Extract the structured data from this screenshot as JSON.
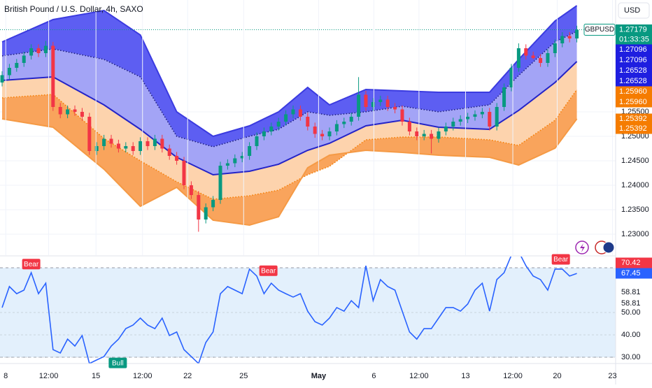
{
  "chart_data": [
    {
      "type": "candlestick",
      "title": "British Pound / U.S. Dollar, 4h, SAXO",
      "symbol": "GBPUSD",
      "up_color": "#089981",
      "down_color": "#f23645",
      "open": [
        1.261,
        1.2625,
        1.264,
        1.265,
        1.2665,
        1.268,
        1.267,
        1.2685,
        1.256,
        1.2545,
        1.2555,
        1.255,
        1.254,
        1.247,
        1.248,
        1.2495,
        1.2485,
        1.2475,
        1.248,
        1.247,
        1.249,
        1.248,
        1.2495,
        1.2475,
        1.246,
        1.245,
        1.24,
        1.238,
        1.233,
        1.2355,
        1.237,
        1.244,
        1.2445,
        1.2455,
        1.246,
        1.248,
        1.25,
        1.251,
        1.252,
        1.253,
        1.2545,
        1.2555,
        1.254,
        1.252,
        1.2505,
        1.25,
        1.251,
        1.2525,
        1.253,
        1.254,
        1.2585,
        1.256,
        1.257,
        1.2575,
        1.256,
        1.2555,
        1.253,
        1.251,
        1.25,
        1.2505,
        1.2495,
        1.251,
        1.252,
        1.253,
        1.2535,
        1.254,
        1.2545,
        1.255,
        1.252,
        1.256,
        1.26,
        1.264,
        1.268,
        1.2665,
        1.266,
        1.265,
        1.267,
        1.269,
        1.2705,
        1.27
      ],
      "high": [
        1.2633,
        1.2648,
        1.2658,
        1.2673,
        1.2688,
        1.2688,
        1.2695,
        1.2693,
        1.2568,
        1.2563,
        1.2563,
        1.2558,
        1.2548,
        1.2488,
        1.2503,
        1.2503,
        1.2493,
        1.2488,
        1.2488,
        1.2498,
        1.2498,
        1.2503,
        1.2503,
        1.2483,
        1.2468,
        1.2458,
        1.2408,
        1.2388,
        1.2363,
        1.2378,
        1.2448,
        1.2453,
        1.2463,
        1.2468,
        1.2488,
        1.2508,
        1.2518,
        1.2528,
        1.2538,
        1.2553,
        1.2563,
        1.2563,
        1.2548,
        1.2528,
        1.2513,
        1.2518,
        1.2533,
        1.2538,
        1.2548,
        1.2621,
        1.2593,
        1.2578,
        1.2583,
        1.2583,
        1.2568,
        1.2563,
        1.2538,
        1.2518,
        1.2513,
        1.2513,
        1.2518,
        1.2528,
        1.2538,
        1.2543,
        1.2548,
        1.2553,
        1.2558,
        1.2558,
        1.2568,
        1.2608,
        1.2648,
        1.269,
        1.2688,
        1.2673,
        1.2668,
        1.2678,
        1.2698,
        1.2713,
        1.2713,
        1.2726
      ],
      "low": [
        1.2602,
        1.2617,
        1.2632,
        1.2642,
        1.2657,
        1.2662,
        1.2662,
        1.2552,
        1.2537,
        1.2537,
        1.2542,
        1.2532,
        1.2462,
        1.2462,
        1.2472,
        1.2477,
        1.2467,
        1.2467,
        1.2462,
        1.2462,
        1.2472,
        1.2472,
        1.2467,
        1.2452,
        1.2442,
        1.2392,
        1.2372,
        1.2305,
        1.2322,
        1.2347,
        1.2362,
        1.2432,
        1.2437,
        1.2447,
        1.2452,
        1.2472,
        1.2492,
        1.2502,
        1.2512,
        1.2522,
        1.2537,
        1.2532,
        1.2512,
        1.2497,
        1.2492,
        1.2492,
        1.2502,
        1.2517,
        1.2522,
        1.2532,
        1.2552,
        1.2552,
        1.2562,
        1.2552,
        1.2547,
        1.2522,
        1.2502,
        1.2492,
        1.2492,
        1.2465,
        1.2487,
        1.2502,
        1.2512,
        1.2522,
        1.2527,
        1.2532,
        1.2537,
        1.2512,
        1.2512,
        1.2552,
        1.2592,
        1.2632,
        1.2657,
        1.2657,
        1.2642,
        1.2642,
        1.2662,
        1.2682,
        1.2692,
        1.2692
      ],
      "close": [
        1.2625,
        1.264,
        1.265,
        1.2665,
        1.268,
        1.267,
        1.2685,
        1.256,
        1.2545,
        1.2555,
        1.255,
        1.254,
        1.247,
        1.248,
        1.2495,
        1.2485,
        1.2475,
        1.248,
        1.247,
        1.249,
        1.248,
        1.2495,
        1.2475,
        1.246,
        1.245,
        1.24,
        1.238,
        1.233,
        1.2355,
        1.237,
        1.244,
        1.2445,
        1.2455,
        1.246,
        1.248,
        1.25,
        1.251,
        1.252,
        1.253,
        1.2545,
        1.2555,
        1.254,
        1.252,
        1.2505,
        1.25,
        1.251,
        1.2525,
        1.253,
        1.254,
        1.2585,
        1.256,
        1.257,
        1.2575,
        1.256,
        1.2555,
        1.253,
        1.251,
        1.25,
        1.2505,
        1.2495,
        1.251,
        1.252,
        1.253,
        1.2535,
        1.254,
        1.2545,
        1.255,
        1.252,
        1.256,
        1.26,
        1.264,
        1.268,
        1.2665,
        1.266,
        1.265,
        1.267,
        1.269,
        1.2705,
        1.27,
        1.27179
      ],
      "bands": [
        {
          "color": "#3b3be0",
          "fill": "#5d5ef2",
          "dash": false,
          "x": [
            0,
            7,
            14,
            19,
            24,
            29,
            34,
            38,
            42,
            45,
            50,
            55,
            60,
            67,
            71,
            76,
            79
          ],
          "values": [
            1.26929,
            1.27386,
            1.27571,
            1.27071,
            1.255,
            1.25,
            1.25214,
            1.255,
            1.26,
            1.25643,
            1.25957,
            1.25929,
            1.259,
            1.259,
            1.26571,
            1.27357,
            1.27671
          ]
        },
        {
          "color": "#1a1a7a",
          "fill": "#a3a4f6",
          "dash": true,
          "x": [
            0,
            7,
            14,
            19,
            24,
            29,
            34,
            38,
            42,
            45,
            50,
            55,
            60,
            67,
            71,
            76,
            79
          ],
          "values": [
            1.26643,
            1.26786,
            1.26571,
            1.26214,
            1.25,
            1.24786,
            1.25,
            1.25143,
            1.255,
            1.25429,
            1.255,
            1.25614,
            1.255,
            1.25643,
            1.26243,
            1.26929,
            1.27143
          ]
        },
        {
          "color": "#2424c8",
          "fill": "#fdd3ad",
          "dash": false,
          "x": [
            0,
            7,
            14,
            19,
            24,
            29,
            34,
            38,
            42,
            45,
            50,
            55,
            60,
            67,
            71,
            76,
            79
          ],
          "values": [
            1.26143,
            1.26214,
            1.25643,
            1.25143,
            1.24571,
            1.24214,
            1.24286,
            1.24429,
            1.24714,
            1.24857,
            1.25214,
            1.25329,
            1.25186,
            1.25143,
            1.25529,
            1.261,
            1.26529
          ]
        },
        {
          "color": "#f57c00",
          "fill": "#f9a45c",
          "dash": true,
          "x": [
            0,
            7,
            14,
            19,
            24,
            29,
            34,
            38,
            42,
            45,
            50,
            55,
            60,
            67,
            71,
            76,
            79
          ],
          "values": [
            1.25786,
            1.25857,
            1.24957,
            1.245,
            1.24071,
            1.23714,
            1.23786,
            1.239,
            1.24214,
            1.24386,
            1.24929,
            1.24986,
            1.24986,
            1.24929,
            1.24814,
            1.25329,
            1.25957
          ]
        },
        {
          "color": "#f59a45",
          "fill": null,
          "dash": false,
          "x": [
            0,
            7,
            14,
            19,
            24,
            29,
            34,
            38,
            42,
            45,
            50,
            55,
            60,
            67,
            71,
            76,
            79
          ],
          "values": [
            1.25357,
            1.25186,
            1.24329,
            1.23571,
            1.23957,
            1.23286,
            1.23186,
            1.23357,
            1.24357,
            1.24614,
            1.24714,
            1.24671,
            1.24614,
            1.24571,
            1.24414,
            1.24757,
            1.25357
          ]
        }
      ],
      "xlim": [
        -0.29,
        84.33
      ],
      "ylim": [
        1.22571,
        1.27786
      ],
      "yticks": [
        {
          "value": 1.23,
          "label": "1.23000"
        },
        {
          "value": 1.235,
          "label": "1.23500"
        },
        {
          "value": 1.24,
          "label": "1.24000"
        },
        {
          "value": 1.245,
          "label": "1.24500"
        },
        {
          "value": 1.25,
          "label": "1.25000"
        },
        {
          "value": 1.255,
          "label": "1.25500"
        }
      ],
      "currency": "USD",
      "badges": [
        {
          "text": "1.27179",
          "color": "#089981"
        },
        {
          "text": "01:33:35",
          "color": "#089981"
        },
        {
          "text": "1.27096",
          "color": "#1e1ee0"
        },
        {
          "text": "1.27096",
          "color": "#1e1ee0"
        },
        {
          "text": "1.26528",
          "color": "#1e1ee0"
        },
        {
          "text": "1.26528",
          "color": "#1e1ee0"
        },
        {
          "text": "1.25960",
          "color": "#f57c00"
        },
        {
          "text": "1.25960",
          "color": "#f57c00"
        },
        {
          "text": "1.25392",
          "color": "#f57c00"
        },
        {
          "text": "1.25392",
          "color": "#f57c00"
        }
      ]
    },
    {
      "type": "line",
      "color": "#2962ff",
      "values": [
        52.2,
        61.6,
        58.4,
        60.0,
        67.8,
        58.4,
        63.1,
        33.4,
        31.9,
        38.1,
        35.0,
        39.7,
        27.2,
        28.8,
        30.3,
        35.0,
        38.1,
        42.8,
        44.4,
        47.5,
        44.4,
        42.8,
        47.5,
        39.7,
        41.3,
        33.4,
        30.3,
        27.2,
        36.6,
        41.3,
        58.4,
        61.6,
        60.0,
        58.4,
        69.4,
        66.3,
        58.4,
        63.1,
        60.0,
        58.4,
        56.9,
        58.4,
        50.6,
        45.9,
        44.4,
        47.5,
        52.2,
        50.6,
        55.3,
        52.2,
        70.9,
        55.3,
        64.7,
        61.6,
        60.0,
        50.6,
        41.3,
        38.1,
        42.8,
        42.8,
        47.5,
        52.2,
        52.2,
        50.6,
        53.8,
        60.0,
        63.1,
        50.6,
        64.7,
        67.8,
        75.6,
        77.2,
        70.9,
        66.3,
        64.7,
        60.0,
        69.4,
        69.4,
        66.3,
        67.45
      ],
      "xlim": [
        -0.29,
        84.33
      ],
      "ylim": [
        27.19,
        75
      ],
      "band": [
        30,
        70
      ],
      "band_color": "#e3f0fc",
      "yticks": [
        {
          "value": 30,
          "label": "30.00"
        },
        {
          "value": 40,
          "label": "40.00"
        },
        {
          "value": 50,
          "label": "50.00"
        }
      ],
      "xticks": [
        {
          "value": 0.5,
          "label": "8"
        },
        {
          "value": 6.4,
          "label": "12:00"
        },
        {
          "value": 12.9,
          "label": "15"
        },
        {
          "value": 19.3,
          "label": "12:00"
        },
        {
          "value": 25.5,
          "label": "22"
        },
        {
          "value": 33.2,
          "label": "25"
        },
        {
          "value": 43.5,
          "label": "May"
        },
        {
          "value": 51.1,
          "label": "6"
        },
        {
          "value": 57.3,
          "label": "12:00"
        },
        {
          "value": 63.7,
          "label": "13"
        },
        {
          "value": 70.2,
          "label": "12:00"
        },
        {
          "value": 76.3,
          "label": "20"
        },
        {
          "value": 83.9,
          "label": "23"
        }
      ],
      "annotations": [
        {
          "text": "Bear",
          "x": 4,
          "y": 71.5,
          "color": "#f23645"
        },
        {
          "text": "Bear",
          "x": 36.6,
          "y": 68.5,
          "color": "#f23645"
        },
        {
          "text": "Bear",
          "x": 76.8,
          "y": 73.6,
          "color": "#f23645"
        },
        {
          "text": "Bull",
          "x": 15.9,
          "y": 27.3,
          "color": "#089981"
        }
      ],
      "badges": [
        {
          "text": "70.42",
          "color": "#f23645"
        },
        {
          "text": "67.45",
          "color": "#2962ff"
        },
        {
          "text": "58.81",
          "color": null
        },
        {
          "text": "58.81",
          "color": null
        }
      ]
    }
  ]
}
